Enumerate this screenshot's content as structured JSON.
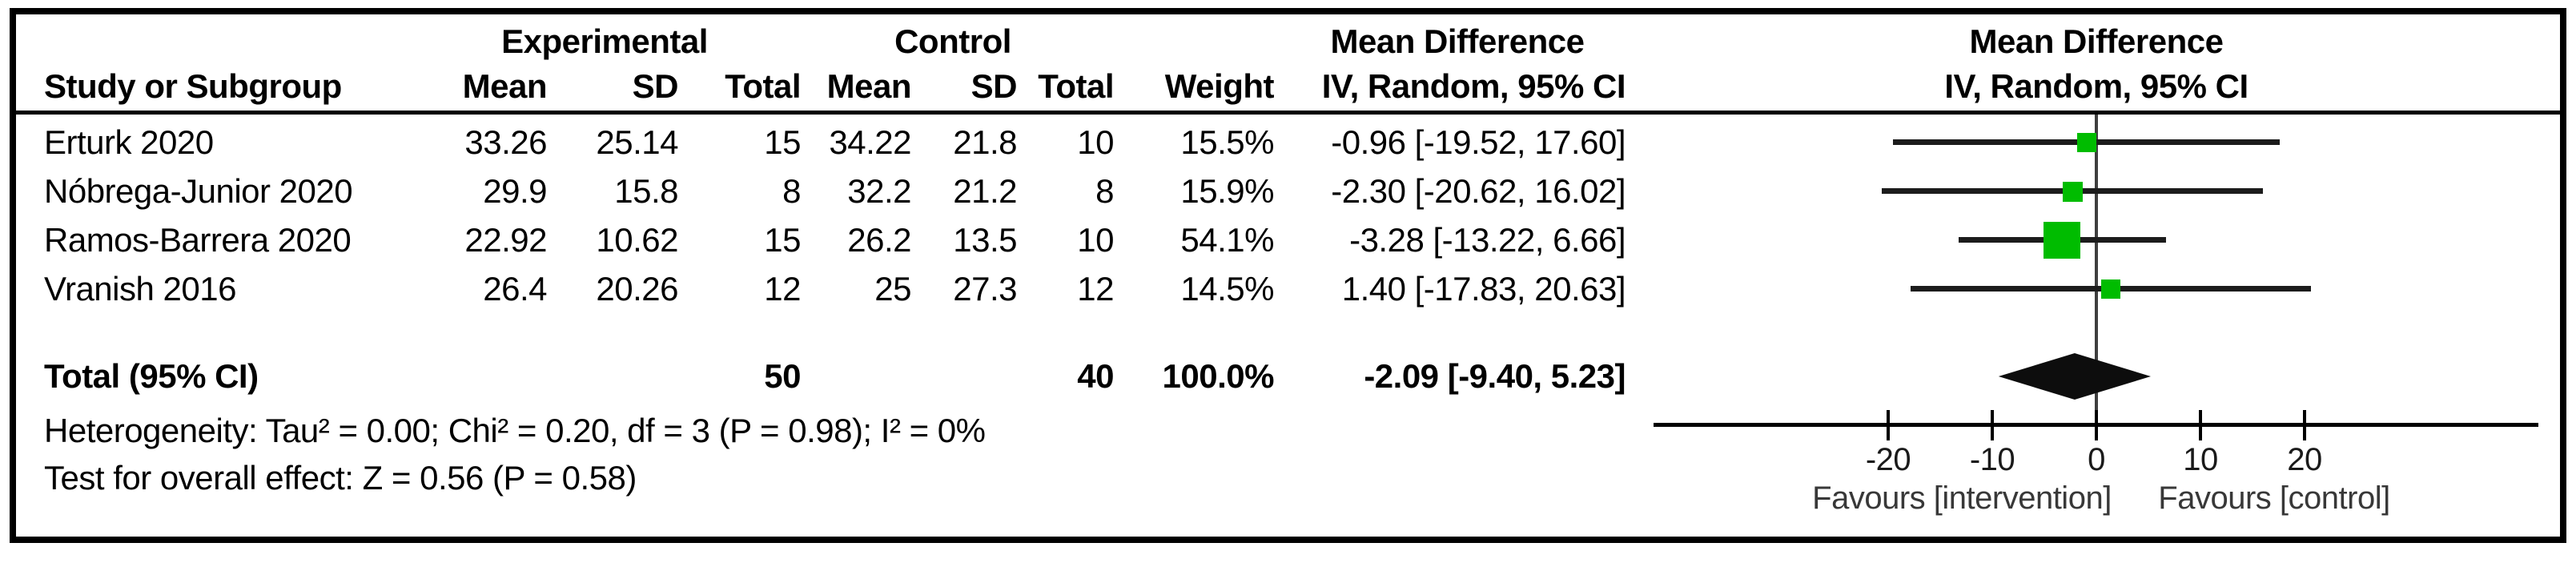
{
  "table": {
    "group_headers": {
      "experimental": "Experimental",
      "control": "Control",
      "mean_difference": "Mean Difference"
    },
    "column_headers": {
      "study": "Study or Subgroup",
      "mean": "Mean",
      "sd": "SD",
      "total": "Total",
      "mean2": "Mean",
      "sd2": "SD",
      "total2": "Total",
      "weight": "Weight",
      "ci": "IV, Random, 95% CI"
    },
    "studies": [
      {
        "name": "Erturk 2020",
        "exp_mean": "33.26",
        "exp_sd": "25.14",
        "exp_total": "15",
        "ctl_mean": "34.22",
        "ctl_sd": "21.8",
        "ctl_total": "10",
        "weight": "15.5%",
        "ci_text": "-0.96 [-19.52, 17.60]",
        "effect": -0.96,
        "ci_lo": -19.52,
        "ci_hi": 17.6,
        "weight_pct": 15.5
      },
      {
        "name": "Nóbrega-Junior 2020",
        "exp_mean": "29.9",
        "exp_sd": "15.8",
        "exp_total": "8",
        "ctl_mean": "32.2",
        "ctl_sd": "21.2",
        "ctl_total": "8",
        "weight": "15.9%",
        "ci_text": "-2.30 [-20.62, 16.02]",
        "effect": -2.3,
        "ci_lo": -20.62,
        "ci_hi": 16.02,
        "weight_pct": 15.9
      },
      {
        "name": "Ramos-Barrera 2020",
        "exp_mean": "22.92",
        "exp_sd": "10.62",
        "exp_total": "15",
        "ctl_mean": "26.2",
        "ctl_sd": "13.5",
        "ctl_total": "10",
        "weight": "54.1%",
        "ci_text": "-3.28 [-13.22, 6.66]",
        "effect": -3.28,
        "ci_lo": -13.22,
        "ci_hi": 6.66,
        "weight_pct": 54.1
      },
      {
        "name": "Vranish 2016",
        "exp_mean": "26.4",
        "exp_sd": "20.26",
        "exp_total": "12",
        "ctl_mean": "25",
        "ctl_sd": "27.3",
        "ctl_total": "12",
        "weight": "14.5%",
        "ci_text": "1.40 [-17.83, 20.63]",
        "effect": 1.4,
        "ci_lo": -17.83,
        "ci_hi": 20.63,
        "weight_pct": 14.5
      }
    ],
    "total_row": {
      "label": "Total (95% CI)",
      "exp_total": "50",
      "ctl_total": "40",
      "weight": "100.0%",
      "ci_text": "-2.09 [-9.40, 5.23]",
      "effect": -2.09,
      "ci_lo": -9.4,
      "ci_hi": 5.23
    },
    "footer": {
      "heterogeneity": "Heterogeneity: Tau² = 0.00; Chi² = 0.20, df = 3 (P = 0.98); I² = 0%",
      "overall_effect": "Test for overall effect: Z = 0.56 (P = 0.58)"
    }
  },
  "plot": {
    "header_line1": "Mean Difference",
    "header_line2": "IV, Random, 95% CI",
    "favours_left": "Favours [intervention]",
    "favours_right": "Favours [control]",
    "marker_color": "#00bc00",
    "diamond_color": "#0d0d0d",
    "zero_line_color": "#3f3f3f"
  },
  "chart_data": {
    "type": "scatter",
    "subtype": "forest-plot",
    "title": "Mean Difference IV, Random, 95% CI",
    "xlabel_left": "Favours [intervention]",
    "xlabel_right": "Favours [control]",
    "x_ticks": [
      -20,
      -10,
      0,
      10,
      20
    ],
    "xlim": [
      -42.5,
      42.5
    ],
    "series": [
      {
        "name": "Erturk 2020",
        "effect": -0.96,
        "ci": [
          -19.52,
          17.6
        ],
        "weight_pct": 15.5
      },
      {
        "name": "Nóbrega-Junior 2020",
        "effect": -2.3,
        "ci": [
          -20.62,
          16.02
        ],
        "weight_pct": 15.9
      },
      {
        "name": "Ramos-Barrera 2020",
        "effect": -3.28,
        "ci": [
          -13.22,
          6.66
        ],
        "weight_pct": 54.1
      },
      {
        "name": "Vranish 2016",
        "effect": 1.4,
        "ci": [
          -17.83,
          20.63
        ],
        "weight_pct": 14.5
      }
    ],
    "pooled": {
      "name": "Total (95% CI)",
      "effect": -2.09,
      "ci": [
        -9.4,
        5.23
      ],
      "weight_pct": 100.0
    },
    "heterogeneity": {
      "tau2": 0.0,
      "chi2": 0.2,
      "df": 3,
      "p": 0.98,
      "i2_pct": 0
    },
    "overall_effect_test": {
      "z": 0.56,
      "p": 0.58
    },
    "experimental_total_n": 50,
    "control_total_n": 40,
    "model": "IV, Random, 95% CI"
  }
}
